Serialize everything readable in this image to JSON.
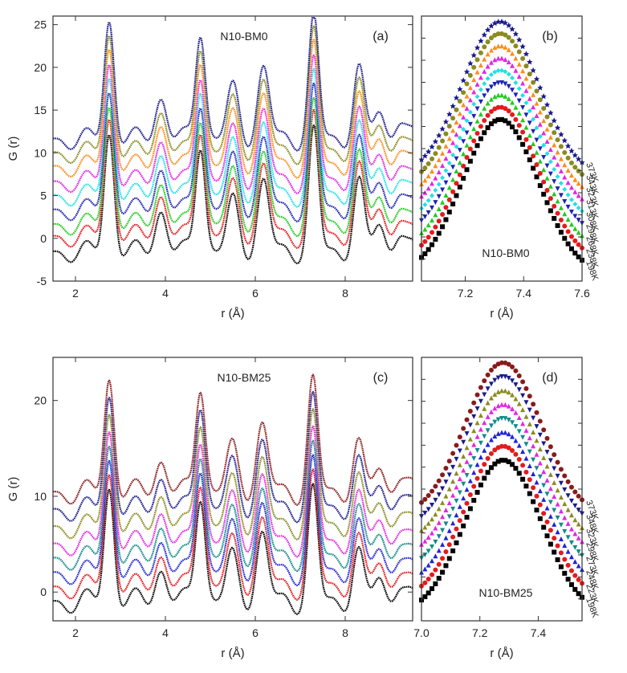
{
  "chart_data": [
    {
      "id": "a",
      "type": "line",
      "panel_label": "(a)",
      "sample": "N10-BM0",
      "xlabel": "r (Å)",
      "ylabel": "G (r)",
      "xlim": [
        1.5,
        9.5
      ],
      "ylim": [
        -5,
        26
      ],
      "xticks": [
        2,
        4,
        6,
        8
      ],
      "yticks": [
        -5,
        0,
        5,
        10,
        15,
        20,
        25
      ],
      "peaks": [
        {
          "x": 2.75,
          "h": 14.0,
          "w": 0.11
        },
        {
          "x": 3.9,
          "h": 5.0,
          "w": 0.13
        },
        {
          "x": 4.78,
          "h": 13.0,
          "w": 0.11
        },
        {
          "x": 5.5,
          "h": 5.7,
          "w": 0.13
        },
        {
          "x": 6.18,
          "h": 8.2,
          "w": 0.13
        },
        {
          "x": 7.3,
          "h": 14.0,
          "w": 0.11
        },
        {
          "x": 8.3,
          "h": 8.0,
          "w": 0.12
        },
        {
          "x": 8.75,
          "h": 3.2,
          "w": 0.12
        },
        {
          "x": 9.2,
          "h": 2.5,
          "w": 0.12
        }
      ],
      "series": [
        {
          "temperature": "198K",
          "offset": -1.6,
          "color": "#000000"
        },
        {
          "temperature": "238K",
          "offset": 0.2,
          "color": "#e41a1c"
        },
        {
          "temperature": "268K",
          "offset": 1.6,
          "color": "#1fcc1f"
        },
        {
          "temperature": "298K",
          "offset": 3.3,
          "color": "#1e23b0"
        },
        {
          "temperature": "308K",
          "offset": 5.0,
          "color": "#21e0e6"
        },
        {
          "temperature": "313K",
          "offset": 6.6,
          "color": "#e326e3"
        },
        {
          "temperature": "323K",
          "offset": 8.4,
          "color": "#ff8c1a"
        },
        {
          "temperature": "343K",
          "offset": 10.0,
          "color": "#8a8a20"
        },
        {
          "temperature": "373K",
          "offset": 11.6,
          "color": "#1a1a8c"
        }
      ]
    },
    {
      "id": "b",
      "type": "scatter",
      "panel_label": "(b)",
      "sample": "N10-BM0",
      "xlabel": "r (Å)",
      "ylabel": "",
      "xlim": [
        7.05,
        7.6
      ],
      "peak_center": 7.32,
      "peak_width": 0.13,
      "xticks": [
        7.2,
        7.4,
        7.6
      ],
      "series": [
        {
          "temperature": "198K",
          "color": "#000000",
          "marker": "square"
        },
        {
          "temperature": "238K",
          "color": "#e41a1c",
          "marker": "circle"
        },
        {
          "temperature": "268K",
          "color": "#1fcc1f",
          "marker": "triangle"
        },
        {
          "temperature": "298K",
          "color": "#1e23b0",
          "marker": "triangle-down"
        },
        {
          "temperature": "308K",
          "color": "#21e0e6",
          "marker": "diamond"
        },
        {
          "temperature": "313K",
          "color": "#e326e3",
          "marker": "triangle"
        },
        {
          "temperature": "323K",
          "color": "#ff8c1a",
          "marker": "triangle"
        },
        {
          "temperature": "343K",
          "color": "#8a8a20",
          "marker": "circle"
        },
        {
          "temperature": "373K",
          "color": "#1a1a8c",
          "marker": "star"
        }
      ]
    },
    {
      "id": "c",
      "type": "line",
      "panel_label": "(c)",
      "sample": "N10-BM25",
      "xlabel": "r (Å)",
      "ylabel": "G (r)",
      "xlim": [
        1.5,
        9.5
      ],
      "ylim": [
        -3,
        24.5
      ],
      "xticks": [
        2,
        4,
        6,
        8
      ],
      "yticks": [
        0,
        10,
        20
      ],
      "peaks": [
        {
          "x": 2.75,
          "h": 12.0,
          "w": 0.11
        },
        {
          "x": 3.9,
          "h": 3.5,
          "w": 0.13
        },
        {
          "x": 4.78,
          "h": 11.5,
          "w": 0.11
        },
        {
          "x": 5.48,
          "h": 4.5,
          "w": 0.13
        },
        {
          "x": 6.15,
          "h": 7.0,
          "w": 0.13
        },
        {
          "x": 7.28,
          "h": 11.5,
          "w": 0.11
        },
        {
          "x": 8.28,
          "h": 5.0,
          "w": 0.12
        },
        {
          "x": 8.75,
          "h": 2.5,
          "w": 0.12
        },
        {
          "x": 9.2,
          "h": 2.0,
          "w": 0.12
        }
      ],
      "series": [
        {
          "temperature": "198K",
          "offset": -1.0,
          "color": "#000000"
        },
        {
          "temperature": "223K",
          "offset": 0.5,
          "color": "#e41a1c"
        },
        {
          "temperature": "248K",
          "offset": 2.0,
          "color": "#1e23d6"
        },
        {
          "temperature": "273K",
          "offset": 3.5,
          "color": "#138a8a"
        },
        {
          "temperature": "298K",
          "offset": 5.0,
          "color": "#e326e3"
        },
        {
          "temperature": "323K",
          "offset": 6.8,
          "color": "#8a8a20"
        },
        {
          "temperature": "348K",
          "offset": 8.6,
          "color": "#1a1a8c"
        },
        {
          "temperature": "373K",
          "offset": 10.4,
          "color": "#8a1a1a"
        }
      ]
    },
    {
      "id": "d",
      "type": "scatter",
      "panel_label": "(d)",
      "sample": "N10-BM25",
      "xlabel": "r (Å)",
      "ylabel": "",
      "xlim": [
        7.0,
        7.55
      ],
      "peak_center": 7.28,
      "peak_width": 0.13,
      "xticks": [
        7.0,
        7.2,
        7.4
      ],
      "series": [
        {
          "temperature": "198K",
          "color": "#000000",
          "marker": "square"
        },
        {
          "temperature": "223K",
          "color": "#e41a1c",
          "marker": "circle"
        },
        {
          "temperature": "248K",
          "color": "#1e23d6",
          "marker": "triangle"
        },
        {
          "temperature": "273K",
          "color": "#138a8a",
          "marker": "triangle-down"
        },
        {
          "temperature": "298K",
          "color": "#e326e3",
          "marker": "triangle"
        },
        {
          "temperature": "323K",
          "color": "#8a8a20",
          "marker": "triangle"
        },
        {
          "temperature": "348K",
          "color": "#1a1a8c",
          "marker": "triangle-down"
        },
        {
          "temperature": "373K",
          "color": "#8a1a1a",
          "marker": "circle"
        }
      ]
    }
  ]
}
